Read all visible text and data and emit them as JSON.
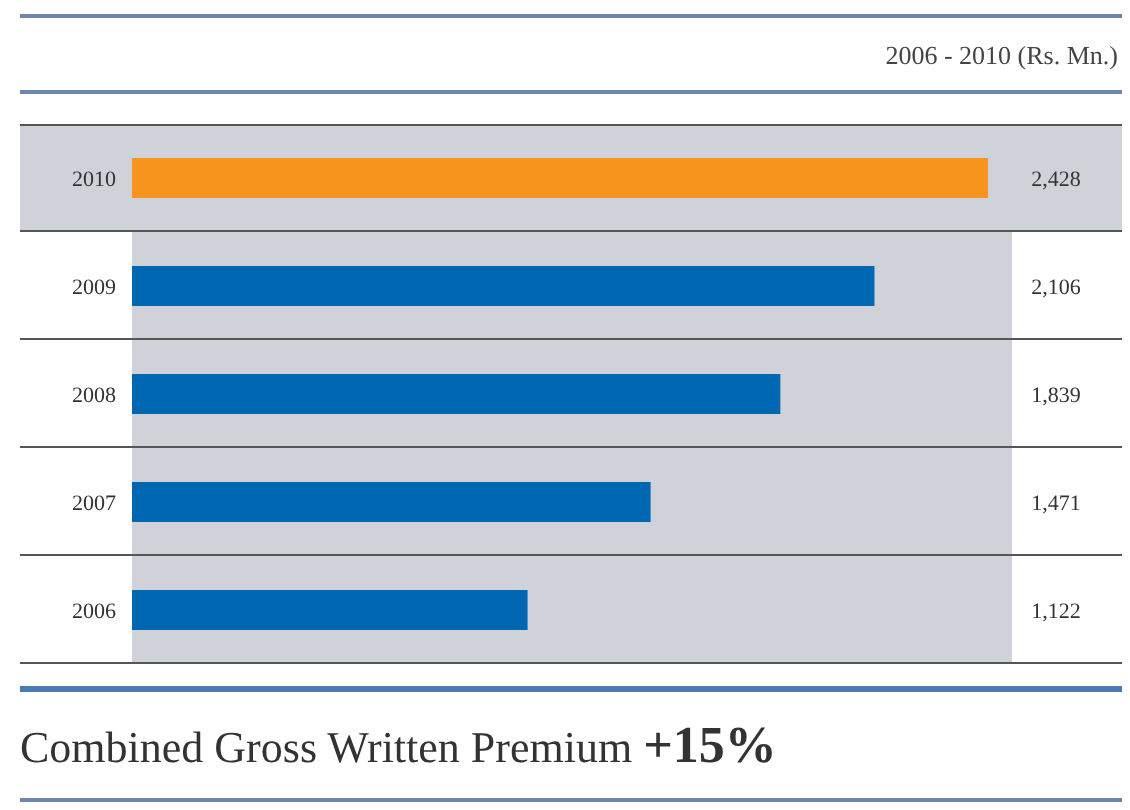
{
  "chart_data": {
    "type": "bar",
    "orientation": "horizontal",
    "subtitle": "2006 - 2010 (Rs. Mn.)",
    "title": "Combined Gross Written Premium",
    "annotations": [
      "+15%"
    ],
    "categories": [
      "2010",
      "2009",
      "2008",
      "2007",
      "2006"
    ],
    "values": [
      2428,
      2106,
      1839,
      1471,
      1122
    ],
    "colors": [
      "#f7941d",
      "#0068b3",
      "#0068b3",
      "#0068b3",
      "#0068b3"
    ],
    "value_labels": [
      "2,428",
      "2,106",
      "1,839",
      "1,471",
      "1,122"
    ]
  }
}
